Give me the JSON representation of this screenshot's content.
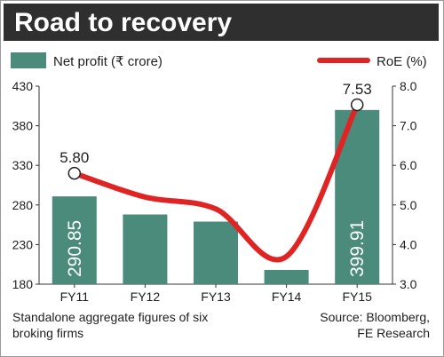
{
  "title": "Road to recovery",
  "legend": {
    "bar_label": "Net profit (₹ crore)",
    "line_label": "RoE (%)"
  },
  "footnote_left": [
    "Standalone aggregate figures of six",
    "broking firms"
  ],
  "footnote_right": [
    "Source: Bloomberg,",
    "FE Research"
  ],
  "colors": {
    "bar": "#4a8b7c",
    "line": "#e02424",
    "title_bg": "#2f2f2f"
  },
  "chart_data": {
    "type": "bar+line",
    "categories": [
      "FY11",
      "FY12",
      "FY13",
      "FY14",
      "FY15"
    ],
    "series": [
      {
        "name": "Net profit (₹ crore)",
        "type": "bar",
        "axis": "left",
        "values": [
          290.85,
          268,
          259,
          198,
          399.91
        ],
        "labels": [
          "290.85",
          null,
          null,
          null,
          "399.91"
        ]
      },
      {
        "name": "RoE (%)",
        "type": "line",
        "axis": "right",
        "values": [
          5.8,
          5.2,
          4.9,
          3.7,
          7.53
        ],
        "labels": [
          "5.80",
          null,
          null,
          null,
          "7.53"
        ]
      }
    ],
    "y_left": {
      "min": 180,
      "max": 430,
      "ticks": [
        180,
        230,
        280,
        330,
        380,
        430
      ]
    },
    "y_right": {
      "min": 3.0,
      "max": 8.0,
      "ticks": [
        "3.0",
        "4.0",
        "5.0",
        "6.0",
        "7.0",
        "8.0"
      ]
    }
  }
}
